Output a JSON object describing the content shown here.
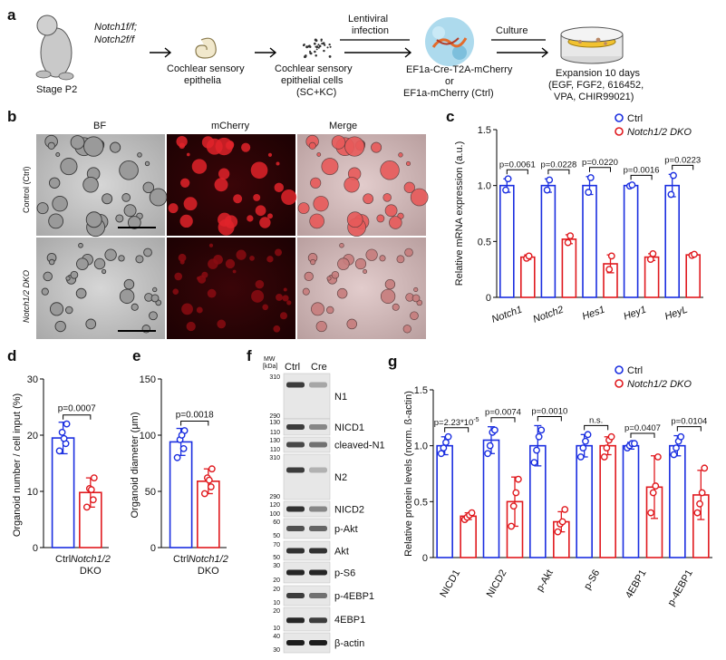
{
  "panel_a": {
    "label": "a",
    "stage": "Stage P2",
    "genotype": [
      "Notch1f/f;",
      "Notch2f/f"
    ],
    "step1": [
      "Cochlear sensory",
      "epithelia"
    ],
    "step2": [
      "Cochlear sensory",
      "epithelial cells",
      "(SC+KC)"
    ],
    "infection": [
      "Lentiviral",
      "infection"
    ],
    "vectors": [
      "EF1a-Cre-T2A-mCherry",
      "or",
      "EF1a-mCherry (Ctrl)"
    ],
    "culture": "Culture",
    "expansion": [
      "Expansion 10 days",
      "(EGF, FGF2, 616452,",
      "VPA, CHIR99021)"
    ]
  },
  "panel_b": {
    "label": "b",
    "columns": [
      "BF",
      "mCherry",
      "Merge"
    ],
    "rows": [
      "Control (Ctrl)",
      "Notch1/2 DKO"
    ]
  },
  "colors": {
    "ctrl": "#1a2ee0",
    "dko": "#e0191e"
  },
  "legend": {
    "ctrl": "Ctrl",
    "dko": "Notch1/2 DKO"
  },
  "panel_c": {
    "label": "c",
    "chart_data": {
      "type": "bar",
      "ylabel": "Relative mRNA expression (a.u.)",
      "ylim": [
        0,
        1.5
      ],
      "yticks": [
        "0",
        "0.5",
        "1.0",
        "1.5"
      ],
      "categories": [
        "Notch1",
        "Notch2",
        "Hes1",
        "Hey1",
        "HeyL"
      ],
      "pvalues": [
        "p=0.0061",
        "p=0.0228",
        "p=0.0220",
        "p=0.0016",
        "p=0.0223"
      ],
      "series": [
        {
          "name": "Ctrl",
          "values": [
            1.0,
            1.0,
            1.0,
            1.0,
            1.0
          ],
          "err": [
            0.06,
            0.06,
            0.08,
            0.01,
            0.1
          ],
          "points": [
            [
              0.96,
              1.06
            ],
            [
              0.96,
              1.05
            ],
            [
              0.94,
              1.07
            ],
            [
              0.995,
              1.005
            ],
            [
              0.92,
              1.09
            ]
          ]
        },
        {
          "name": "Notch1/2 DKO",
          "values": [
            0.36,
            0.52,
            0.3,
            0.36,
            0.38
          ],
          "err": [
            0.02,
            0.04,
            0.08,
            0.03,
            0.01
          ],
          "points": [
            [
              0.35,
              0.37
            ],
            [
              0.49,
              0.55
            ],
            [
              0.25,
              0.37
            ],
            [
              0.34,
              0.39
            ],
            [
              0.375,
              0.385
            ]
          ]
        }
      ]
    }
  },
  "panel_d": {
    "label": "d",
    "chart_data": {
      "type": "bar",
      "ylabel": "Organoid number / cell input (%)",
      "ylim": [
        0,
        30
      ],
      "yticks": [
        "0",
        "10",
        "20",
        "30"
      ],
      "categories": [
        "Ctrl",
        "Notch1/2 DKO"
      ],
      "cat_lines": [
        [
          "Ctrl"
        ],
        [
          "Notch1/2",
          "DKO"
        ]
      ],
      "pvalue": "p=0.0007",
      "values": [
        19.5,
        9.8
      ],
      "err": [
        2.8,
        2.6
      ],
      "points": [
        [
          17.2,
          18.5,
          20.5,
          22,
          19.4
        ],
        [
          7.2,
          8.5,
          10.5,
          12.4,
          10.3
        ]
      ]
    }
  },
  "panel_e": {
    "label": "e",
    "chart_data": {
      "type": "bar",
      "ylabel": "Organoid diameter (μm)",
      "ylim": [
        0,
        150
      ],
      "yticks": [
        "0",
        "50",
        "100",
        "150"
      ],
      "categories": [
        "Ctrl",
        "Notch1/2 DKO"
      ],
      "cat_lines": [
        [
          "Ctrl"
        ],
        [
          "Notch1/2",
          "DKO"
        ]
      ],
      "pvalue": "p=0.0018",
      "values": [
        94,
        59
      ],
      "err": [
        12,
        11
      ],
      "points": [
        [
          80,
          88,
          96,
          104,
          100
        ],
        [
          48,
          54,
          62,
          70,
          60
        ]
      ]
    }
  },
  "panel_f": {
    "label": "f",
    "mw_header": "MW\n[kDa]",
    "lanes": [
      "Ctrl",
      "Cre"
    ],
    "blots": [
      {
        "name": "N1",
        "mw": [
          "310",
          "290"
        ]
      },
      {
        "name": "NICD1",
        "mw": [
          "130",
          "110"
        ]
      },
      {
        "name": "cleaved-N1",
        "mw": [
          "130",
          "110"
        ]
      },
      {
        "name": "N2",
        "mw": [
          "310",
          "290"
        ]
      },
      {
        "name": "NICD2",
        "mw": [
          "120",
          "100"
        ]
      },
      {
        "name": "p-Akt",
        "mw": [
          "60",
          "50"
        ]
      },
      {
        "name": "Akt",
        "mw": [
          "70",
          "50"
        ]
      },
      {
        "name": "p-S6",
        "mw": [
          "30",
          "20"
        ]
      },
      {
        "name": "p-4EBP1",
        "mw": [
          "20",
          "10"
        ]
      },
      {
        "name": "4EBP1",
        "mw": [
          "20",
          "10"
        ]
      },
      {
        "name": "β-actin",
        "mw": [
          "40",
          "30"
        ]
      }
    ]
  },
  "panel_g": {
    "label": "g",
    "chart_data": {
      "type": "bar",
      "ylabel": "Relative protein levels (norm. ß-actin)",
      "ylim": [
        0,
        1.5
      ],
      "yticks": [
        "0",
        "0.5",
        "1.0",
        "1.5"
      ],
      "categories": [
        "NICD1",
        "NICD2",
        "p-Akt",
        "p-S6",
        "4EBP1",
        "p-4EBP1"
      ],
      "pvalues": [
        "p=2.23*10-5",
        "p=0.0074",
        "p=0.0010",
        "n.s.",
        "p=0.0407",
        "p=0.0104"
      ],
      "series": [
        {
          "name": "Ctrl",
          "values": [
            1.0,
            1.05,
            1.0,
            1.0,
            1.0,
            1.0
          ],
          "err": [
            0.08,
            0.12,
            0.18,
            0.1,
            0.03,
            0.09
          ],
          "points": [
            [
              0.93,
              0.98,
              1.03,
              1.08
            ],
            [
              0.93,
              1.0,
              1.12,
              1.14
            ],
            [
              0.85,
              0.96,
              1.08,
              1.14
            ],
            [
              0.9,
              0.98,
              1.04,
              1.1
            ],
            [
              0.98,
              1.0,
              1.02,
              1.02
            ],
            [
              0.92,
              0.98,
              1.04,
              1.08
            ]
          ]
        },
        {
          "name": "Notch1/2 DKO",
          "values": [
            0.37,
            0.5,
            0.32,
            1.0,
            0.63,
            0.56
          ],
          "err": [
            0.03,
            0.22,
            0.09,
            0.08,
            0.28,
            0.22
          ],
          "points": [
            [
              0.34,
              0.36,
              0.38,
              0.4
            ],
            [
              0.28,
              0.46,
              0.58,
              0.7
            ],
            [
              0.23,
              0.3,
              0.32,
              0.43
            ],
            [
              0.9,
              0.98,
              1.05,
              1.08
            ],
            [
              0.4,
              0.58,
              0.64,
              0.9
            ],
            [
              0.4,
              0.48,
              0.58,
              0.8
            ]
          ]
        }
      ]
    }
  }
}
